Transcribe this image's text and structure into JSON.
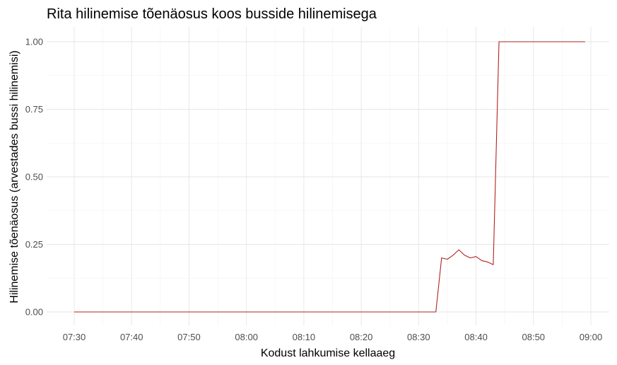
{
  "chart_data": {
    "type": "line",
    "title": "Rita hilinemise tõenäosus koos busside hilinemisega",
    "xlabel": "Kodust lahkumise kellaaeg",
    "ylabel": "Hilinemise tõenäosus (arvestades bussi hilinemisi)",
    "xlim": [
      "07:30",
      "09:00"
    ],
    "ylim": [
      0,
      1
    ],
    "x_ticks": [
      "07:30",
      "07:40",
      "07:50",
      "08:00",
      "08:10",
      "08:20",
      "08:30",
      "08:40",
      "08:50",
      "09:00"
    ],
    "y_ticks": [
      "0.00",
      "0.25",
      "0.50",
      "0.75",
      "1.00"
    ],
    "grid": true,
    "line_color": "#b22222",
    "series": [
      {
        "x": [
          "07:30",
          "07:40",
          "07:50",
          "08:00",
          "08:10",
          "08:20",
          "08:30",
          "08:33",
          "08:34",
          "08:35",
          "08:36",
          "08:37",
          "08:38",
          "08:39",
          "08:40",
          "08:41",
          "08:42",
          "08:43",
          "08:44",
          "08:50",
          "08:59"
        ],
        "y": [
          0.0,
          0.0,
          0.0,
          0.0,
          0.0,
          0.0,
          0.0,
          0.0,
          0.2,
          0.195,
          0.21,
          0.23,
          0.21,
          0.2,
          0.205,
          0.19,
          0.185,
          0.175,
          1.0,
          1.0,
          1.0
        ]
      }
    ]
  }
}
